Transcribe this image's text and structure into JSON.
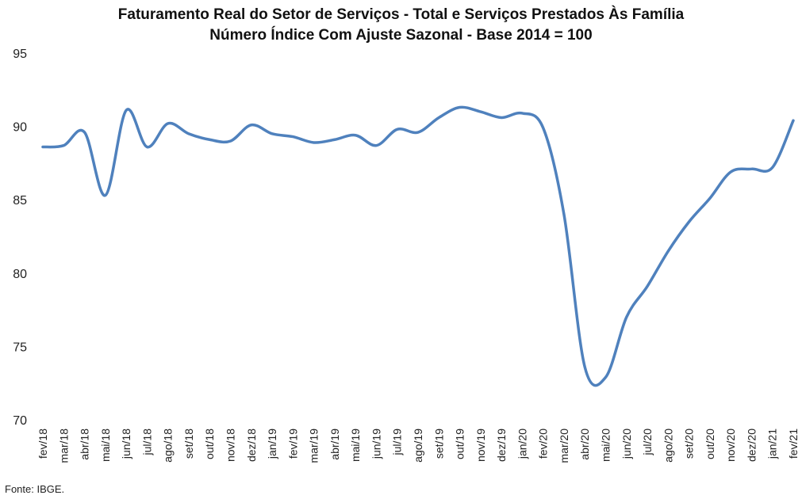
{
  "chart_data": {
    "type": "line",
    "title": "Faturamento Real do Setor de Serviços - Total e Serviços Prestados Às Família",
    "subtitle": "Número Índice Com Ajuste Sazonal - Base 2014 = 100",
    "xlabel": "",
    "ylabel": "",
    "ylim": [
      70,
      95
    ],
    "yticks": [
      "95",
      "90",
      "85",
      "80",
      "75",
      "70"
    ],
    "grid": false,
    "legend": "none",
    "line_color": "#4F81BD",
    "categories": [
      "fev/18",
      "mar/18",
      "abr/18",
      "mai/18",
      "jun/18",
      "jul/18",
      "ago/18",
      "set/18",
      "out/18",
      "nov/18",
      "dez/18",
      "jan/19",
      "fev/19",
      "mar/19",
      "abr/19",
      "mai/19",
      "jun/19",
      "jul/19",
      "ago/19",
      "set/19",
      "out/19",
      "nov/19",
      "dez/19",
      "jan/20",
      "fev/20",
      "mar/20",
      "abr/20",
      "mai/20",
      "jun/20",
      "jul/20",
      "ago/20",
      "set/20",
      "out/20",
      "nov/20",
      "dez/20",
      "jan/21",
      "fev/21"
    ],
    "series": [
      {
        "values": [
          88.6,
          88.7,
          89.6,
          85.3,
          91.1,
          88.6,
          90.2,
          89.5,
          89.1,
          89.0,
          90.1,
          89.5,
          89.3,
          88.9,
          89.1,
          89.4,
          88.7,
          89.8,
          89.6,
          90.6,
          91.3,
          91.0,
          90.6,
          90.9,
          89.9,
          84.0,
          73.6,
          72.9,
          77.0,
          79.1,
          81.5,
          83.5,
          85.1,
          86.9,
          87.1,
          87.2,
          90.4
        ]
      }
    ]
  },
  "footer": {
    "source": "Fonte: IBGE."
  }
}
